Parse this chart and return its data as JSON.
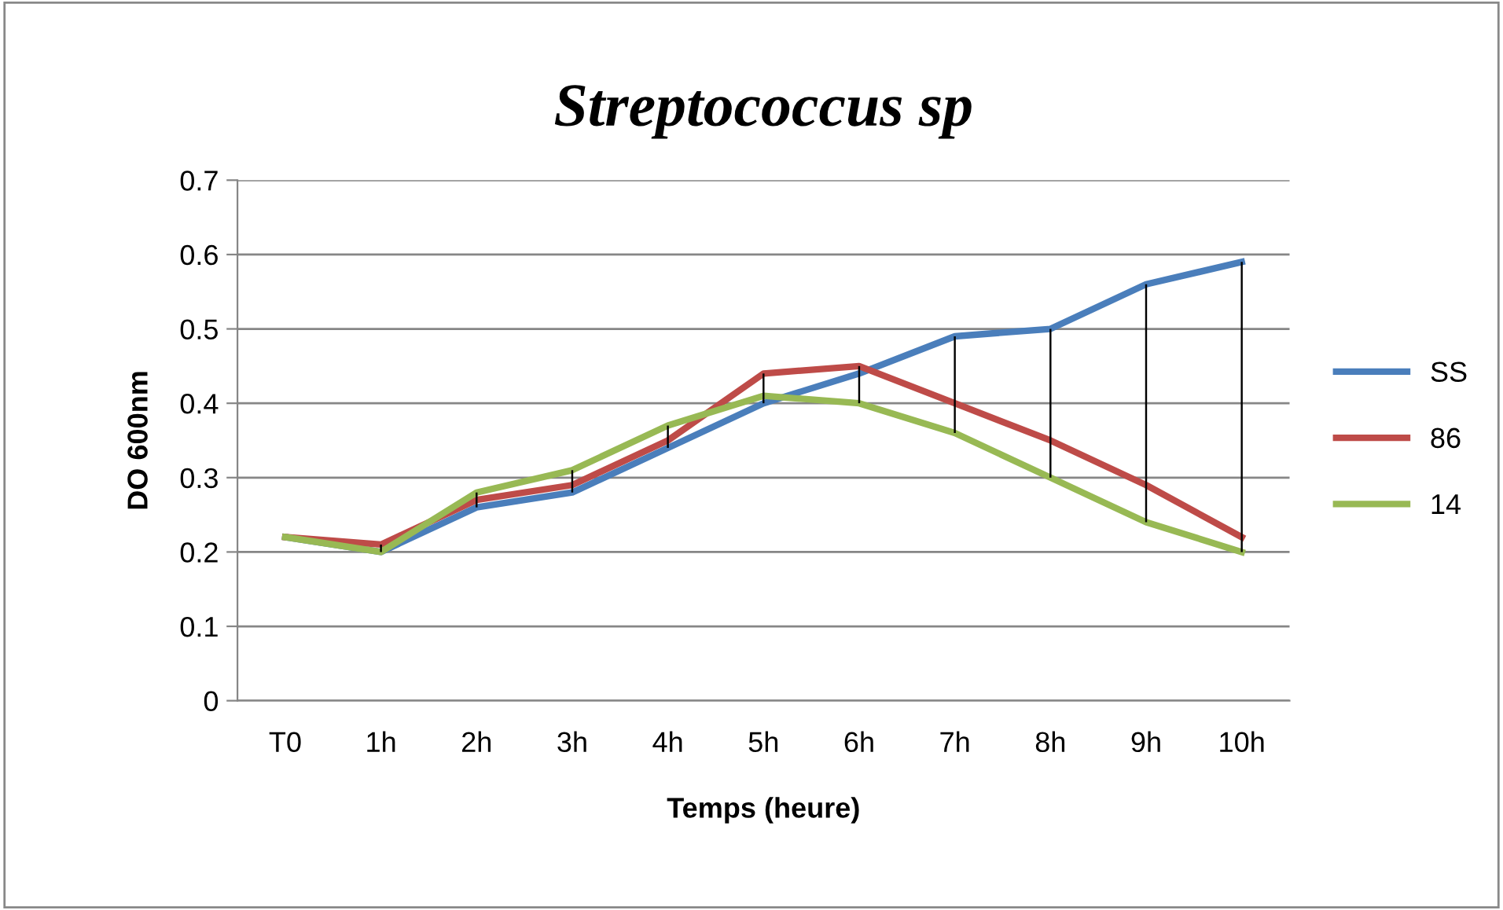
{
  "chart_data": {
    "type": "line",
    "title": "Streptococcus sp",
    "xlabel": "Temps (heure)",
    "ylabel": "DO 600nm",
    "categories": [
      "T0",
      "1h",
      "2h",
      "3h",
      "4h",
      "5h",
      "6h",
      "7h",
      "8h",
      "9h",
      "10h"
    ],
    "series": [
      {
        "name": "SS",
        "color": "#4a7ebb",
        "values": [
          0.22,
          0.2,
          0.26,
          0.28,
          0.34,
          0.4,
          0.44,
          0.49,
          0.5,
          0.56,
          0.59
        ]
      },
      {
        "name": "86",
        "color": "#be4b48",
        "values": [
          0.22,
          0.21,
          0.27,
          0.29,
          0.35,
          0.44,
          0.45,
          0.4,
          0.35,
          0.29,
          0.22
        ]
      },
      {
        "name": "14",
        "color": "#98b954",
        "values": [
          0.22,
          0.2,
          0.28,
          0.31,
          0.37,
          0.41,
          0.4,
          0.36,
          0.3,
          0.24,
          0.2
        ]
      },
      {
        "type": "bar",
        "color": "#000000",
        "base": [
          null,
          0.2,
          0.26,
          0.28,
          0.34,
          0.4,
          0.4,
          0.36,
          0.3,
          0.24,
          0.2
        ],
        "values": [
          null,
          0.01,
          0.02,
          0.03,
          0.03,
          0.04,
          0.05,
          0.13,
          0.2,
          0.32,
          0.39
        ]
      }
    ],
    "ylim": [
      0,
      0.7
    ],
    "yticks": [
      0,
      0.1,
      0.2,
      0.3,
      0.4,
      0.5,
      0.6,
      0.7
    ],
    "grid": "y",
    "legend": "right",
    "marker": "none",
    "line_style": "solid"
  }
}
